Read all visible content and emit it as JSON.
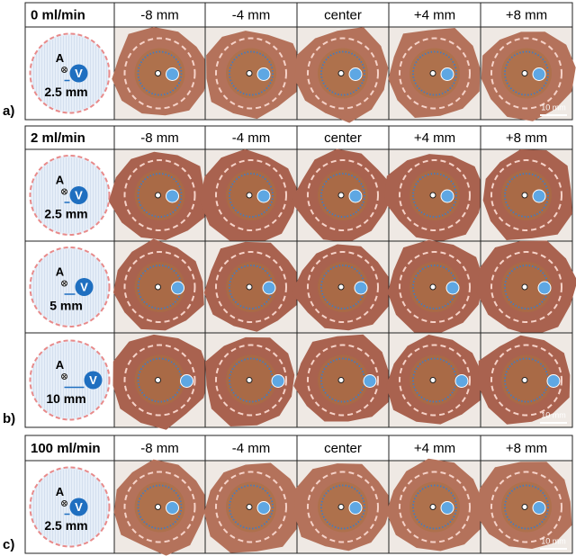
{
  "panels": [
    {
      "label": "a)",
      "flow": "0 ml/min",
      "columns": [
        "-8 mm",
        "-4 mm",
        "center",
        "+4 mm",
        "+8 mm"
      ],
      "rows": [
        {
          "artery": "A",
          "vein": "V",
          "distance": "2.5 mm"
        }
      ],
      "scale_bar": "10 mm"
    },
    {
      "label": "b)",
      "flow": "2 ml/min",
      "columns": [
        "-8 mm",
        "-4 mm",
        "center",
        "+4 mm",
        "+8 mm"
      ],
      "rows": [
        {
          "artery": "A",
          "vein": "V",
          "distance": "2.5 mm"
        },
        {
          "artery": "A",
          "vein": "V",
          "distance": "5 mm"
        },
        {
          "artery": "A",
          "vein": "V",
          "distance": "10 mm"
        }
      ],
      "scale_bar": "10 mm"
    },
    {
      "label": "c)",
      "flow": "100 ml/min",
      "columns": [
        "-8 mm",
        "-4 mm",
        "center",
        "+4 mm",
        "+8 mm"
      ],
      "rows": [
        {
          "artery": "A",
          "vein": "V",
          "distance": "2.5 mm"
        }
      ],
      "scale_bar": "10 mm"
    }
  ]
}
